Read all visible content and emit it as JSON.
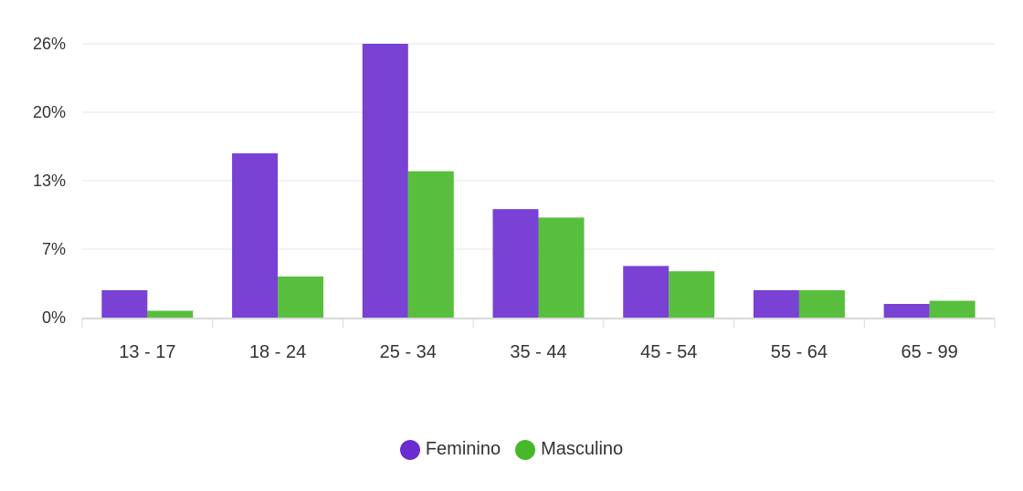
{
  "chart_data": {
    "type": "bar",
    "categories": [
      "13 - 17",
      "18 - 24",
      "25 - 34",
      "35 - 44",
      "45 - 54",
      "55 - 64",
      "65 - 99"
    ],
    "series": [
      {
        "name": "Feminino",
        "color": "#6a2ccf",
        "values": [
          2.6,
          15.6,
          26.0,
          10.3,
          4.9,
          2.6,
          1.3
        ]
      },
      {
        "name": "Masculino",
        "color": "#46b829",
        "values": [
          0.65,
          3.9,
          13.9,
          9.5,
          4.4,
          2.6,
          1.6
        ]
      }
    ],
    "y_ticks": [
      {
        "value": 0,
        "label": "0%"
      },
      {
        "value": 6.5,
        "label": "7%"
      },
      {
        "value": 13,
        "label": "13%"
      },
      {
        "value": 19.5,
        "label": "20%"
      },
      {
        "value": 26,
        "label": "26%"
      }
    ],
    "ylim": [
      0,
      26
    ],
    "grid": true,
    "legend_position": "bottom-center",
    "title": "",
    "xlabel": "",
    "ylabel": ""
  }
}
